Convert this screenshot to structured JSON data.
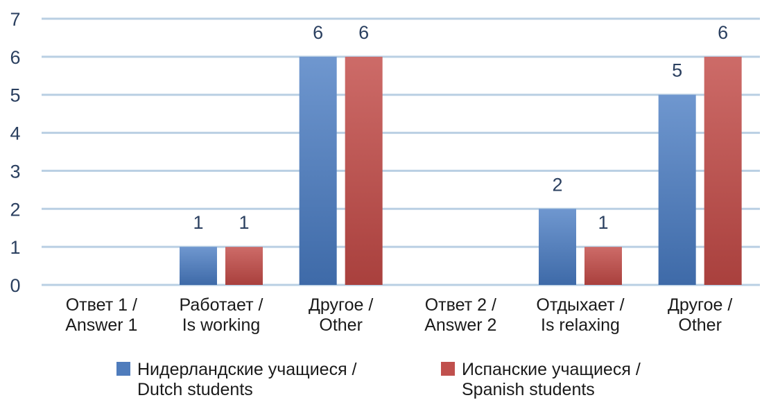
{
  "chart_data": {
    "type": "bar",
    "categories": [
      [
        "Ответ 1 /",
        "Answer 1"
      ],
      [
        "Работает /",
        "Is working"
      ],
      [
        "Другое /",
        "Other"
      ],
      [
        "Ответ 2 /",
        "Answer 2"
      ],
      [
        "Отдыхает /",
        "Is relaxing"
      ],
      [
        "Другое /",
        "Other"
      ]
    ],
    "series": [
      {
        "name": [
          "Нидерландские учащиеся /",
          "Dutch students"
        ],
        "color": "#4f7cbc",
        "values": [
          0,
          1,
          6,
          0,
          2,
          5
        ]
      },
      {
        "name": [
          "Испанские учащиеся /",
          "Spanish students"
        ],
        "color": "#c0504d",
        "values": [
          0,
          1,
          6,
          0,
          1,
          6
        ]
      }
    ],
    "ylim": [
      0,
      7
    ],
    "yticks": [
      0,
      1,
      2,
      3,
      4,
      5,
      6,
      7
    ],
    "grid": true,
    "legend_position": "bottom",
    "data_labels": true
  }
}
